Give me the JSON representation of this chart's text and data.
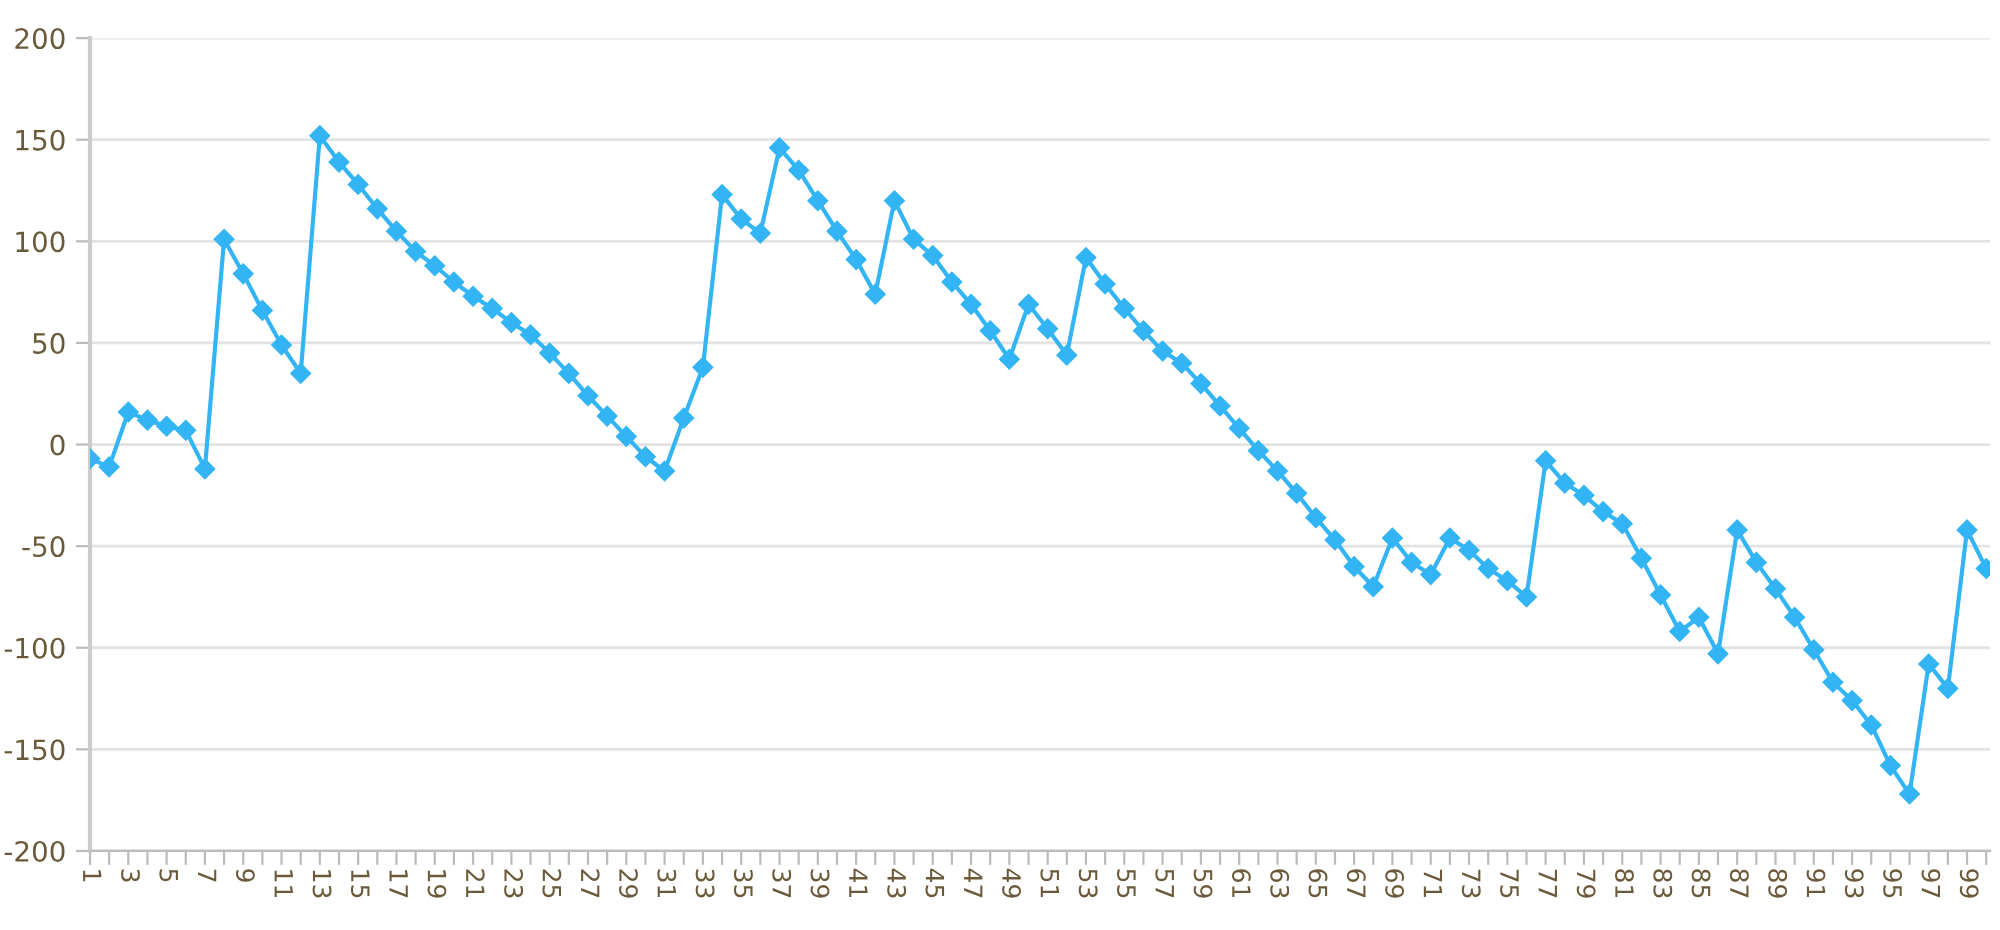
{
  "chart_data": {
    "type": "line",
    "categories": [
      "1",
      null,
      "3",
      null,
      "5",
      null,
      "7",
      null,
      "9",
      null,
      "11",
      null,
      "13",
      null,
      "15",
      null,
      "17",
      null,
      "19",
      null,
      "21",
      null,
      "23",
      null,
      "25",
      null,
      "27",
      null,
      "29",
      null,
      "31",
      null,
      "33",
      null,
      "35",
      null,
      "37",
      null,
      "39",
      null,
      "41",
      null,
      "43",
      null,
      "45",
      null,
      "47",
      null,
      "49",
      null,
      "51",
      null,
      "53",
      null,
      "55",
      null,
      "57",
      null,
      "59",
      null,
      "61",
      null,
      "63",
      null,
      "65",
      null,
      "67",
      null,
      "69",
      null,
      "71",
      null,
      "73",
      null,
      "75",
      null,
      "77",
      null,
      "79",
      null,
      "81",
      null,
      "83",
      null,
      "85",
      null,
      "87",
      null,
      "89",
      null,
      "91",
      null,
      "93",
      null,
      "95",
      null,
      "97",
      null,
      "99",
      null
    ],
    "series": [
      {
        "color": "#33b5f5",
        "values": [
          -7,
          -11,
          16,
          12,
          9,
          7,
          -12,
          101,
          84,
          66,
          49,
          35,
          152,
          139,
          128,
          116,
          105,
          95,
          88,
          80,
          73,
          67,
          60,
          54,
          45,
          35,
          24,
          14,
          4,
          -6,
          -13,
          13,
          38,
          123,
          111,
          104,
          146,
          135,
          120,
          105,
          91,
          74,
          120,
          101,
          93,
          80,
          69,
          56,
          42,
          69,
          57,
          44,
          92,
          79,
          67,
          56,
          46,
          40,
          30,
          19,
          8,
          -3,
          -13,
          -24,
          -36,
          -47,
          -60,
          -70,
          -46,
          -58,
          -64,
          -46,
          -52,
          -61,
          -67,
          -75,
          -8,
          -19,
          -25,
          -33,
          -39,
          -56,
          -74,
          -92,
          -85,
          -103,
          -42,
          -58,
          -71,
          -85,
          -101,
          -117,
          -126,
          -138,
          -158,
          -172,
          -108,
          -120,
          -42,
          -61
        ]
      }
    ],
    "ylim": [
      -200,
      200
    ],
    "yticks": [
      -200,
      -150,
      -100,
      -50,
      0,
      50,
      100,
      150,
      200
    ],
    "grid": "y",
    "marker": "diamond",
    "line_style": "solid"
  }
}
